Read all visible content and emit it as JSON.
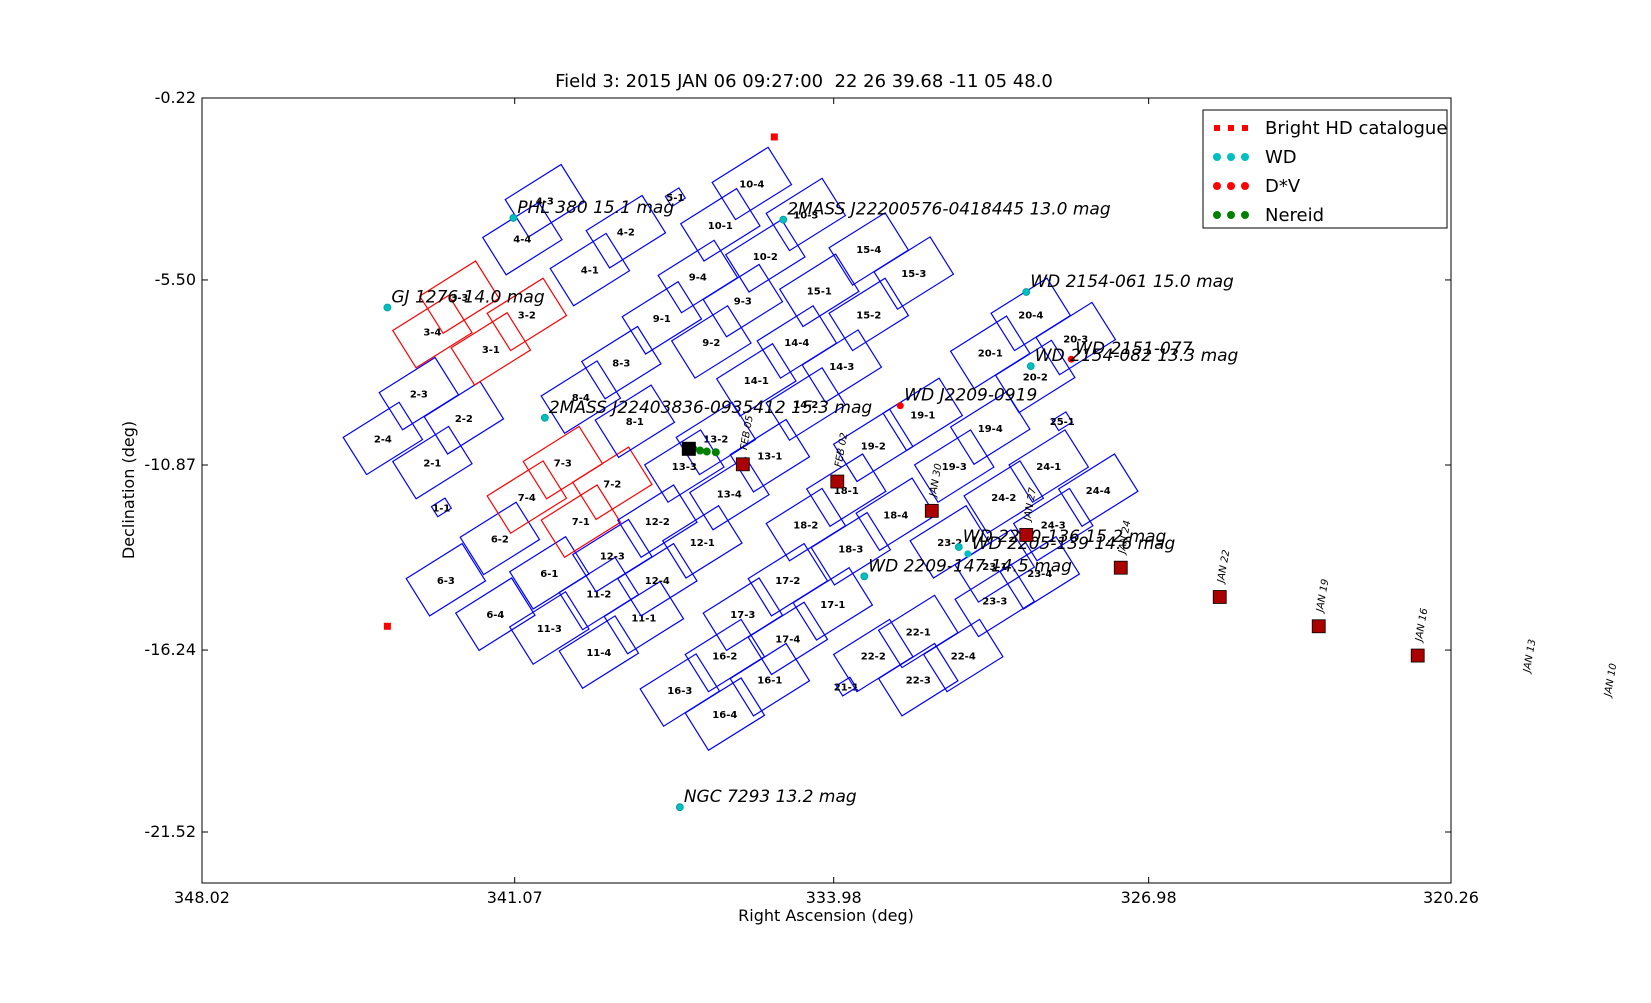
{
  "chart_data": {
    "type": "scatter",
    "title": "Field 3: 2015 JAN 06 09:27:00  22 26 39.68 -11 05 48.0",
    "xlabel": "Right Ascension (deg)",
    "ylabel": "Declination (deg)",
    "xlim": [
      348.02,
      320.26
    ],
    "ylim": [
      -23.0,
      -0.22
    ],
    "xticks": [
      "348.02",
      "341.07",
      "333.98",
      "326.98",
      "320.26"
    ],
    "xtick_values": [
      348.02,
      341.07,
      333.98,
      326.98,
      320.26
    ],
    "yticks": [
      "-0.22",
      "-5.50",
      "-10.87",
      "-16.24",
      "-21.52"
    ],
    "ytick_values": [
      -0.22,
      -5.5,
      -10.87,
      -16.24,
      -21.52
    ],
    "grid": false,
    "legend_position": "top-right",
    "legend": [
      {
        "label": "Bright HD catalogue",
        "color": "#ff0000",
        "marker": "square"
      },
      {
        "label": "WD",
        "color": "#00bfbf",
        "marker": "circle"
      },
      {
        "label": "D*V",
        "color": "#ff0000",
        "marker": "circle"
      },
      {
        "label": "Nereid",
        "color": "#008000",
        "marker": "circle"
      }
    ],
    "colors": {
      "ccd": "#0000ff",
      "ccd_highlight": "#ff0000",
      "track": "#aa0000",
      "wd": "#00bfbf",
      "hd": "#ff0000",
      "dv": "#ff0000",
      "nereid": "#008000"
    },
    "ccd_sample_points": {
      "ccd_1_1": [
        341.9,
        -12.0
      ],
      "ccd_2_1": [
        341.0,
        -10.85
      ],
      "ccd_2_4": [
        343.2,
        -10.3
      ],
      "ccd_3_4": [
        341.5,
        -7.0
      ],
      "ccd_4_4": [
        340.8,
        -5.4
      ],
      "ccd_10_4": [
        336.2,
        -4.1
      ]
    },
    "ccds": [
      {
        "label": "1-1",
        "ra": 342.7,
        "dec": -12.1,
        "hl": false
      },
      {
        "label": "2-1",
        "ra": 342.9,
        "dec": -10.8,
        "hl": false
      },
      {
        "label": "2-2",
        "ra": 342.2,
        "dec": -9.5,
        "hl": false
      },
      {
        "label": "2-3",
        "ra": 343.2,
        "dec": -8.8,
        "hl": false
      },
      {
        "label": "2-4",
        "ra": 344.0,
        "dec": -10.1,
        "hl": false
      },
      {
        "label": "3-1",
        "ra": 341.6,
        "dec": -7.5,
        "hl": true
      },
      {
        "label": "3-2",
        "ra": 340.8,
        "dec": -6.5,
        "hl": true
      },
      {
        "label": "3-3",
        "ra": 342.3,
        "dec": -6.0,
        "hl": true
      },
      {
        "label": "3-4",
        "ra": 342.9,
        "dec": -7.0,
        "hl": true
      },
      {
        "label": "4-1",
        "ra": 339.4,
        "dec": -5.2,
        "hl": false
      },
      {
        "label": "4-2",
        "ra": 338.6,
        "dec": -4.1,
        "hl": false
      },
      {
        "label": "4-3",
        "ra": 340.4,
        "dec": -3.2,
        "hl": false
      },
      {
        "label": "4-4",
        "ra": 340.9,
        "dec": -4.3,
        "hl": false
      },
      {
        "label": "5-1",
        "ra": 337.5,
        "dec": -3.1,
        "hl": false
      },
      {
        "label": "6-1",
        "ra": 340.3,
        "dec": -14.0,
        "hl": false
      },
      {
        "label": "6-2",
        "ra": 341.4,
        "dec": -13.0,
        "hl": false
      },
      {
        "label": "6-3",
        "ra": 342.6,
        "dec": -14.2,
        "hl": false
      },
      {
        "label": "6-4",
        "ra": 341.5,
        "dec": -15.2,
        "hl": false
      },
      {
        "label": "7-1",
        "ra": 339.6,
        "dec": -12.5,
        "hl": true
      },
      {
        "label": "7-2",
        "ra": 338.9,
        "dec": -11.4,
        "hl": true
      },
      {
        "label": "7-3",
        "ra": 340.0,
        "dec": -10.8,
        "hl": true
      },
      {
        "label": "7-4",
        "ra": 340.8,
        "dec": -11.8,
        "hl": true
      },
      {
        "label": "8-1",
        "ra": 338.4,
        "dec": -9.6,
        "hl": false
      },
      {
        "label": "8-3",
        "ra": 338.7,
        "dec": -7.9,
        "hl": false
      },
      {
        "label": "8-4",
        "ra": 339.6,
        "dec": -8.9,
        "hl": false
      },
      {
        "label": "9-1",
        "ra": 337.8,
        "dec": -6.6,
        "hl": false
      },
      {
        "label": "9-2",
        "ra": 336.7,
        "dec": -7.3,
        "hl": false
      },
      {
        "label": "9-3",
        "ra": 336.0,
        "dec": -6.1,
        "hl": false
      },
      {
        "label": "9-4",
        "ra": 337.0,
        "dec": -5.4,
        "hl": false
      },
      {
        "label": "10-1",
        "ra": 336.5,
        "dec": -3.9,
        "hl": false
      },
      {
        "label": "10-2",
        "ra": 335.5,
        "dec": -4.8,
        "hl": false
      },
      {
        "label": "10-3",
        "ra": 334.6,
        "dec": -3.6,
        "hl": false
      },
      {
        "label": "10-4",
        "ra": 335.8,
        "dec": -2.7,
        "hl": false
      },
      {
        "label": "11-1",
        "ra": 338.2,
        "dec": -15.3,
        "hl": false
      },
      {
        "label": "11-2",
        "ra": 339.2,
        "dec": -14.6,
        "hl": false
      },
      {
        "label": "11-3",
        "ra": 340.3,
        "dec": -15.6,
        "hl": false
      },
      {
        "label": "11-4",
        "ra": 339.2,
        "dec": -16.3,
        "hl": false
      },
      {
        "label": "12-1",
        "ra": 336.9,
        "dec": -13.1,
        "hl": false
      },
      {
        "label": "12-2",
        "ra": 337.9,
        "dec": -12.5,
        "hl": false
      },
      {
        "label": "12-3",
        "ra": 338.9,
        "dec": -13.5,
        "hl": false
      },
      {
        "label": "12-4",
        "ra": 337.9,
        "dec": -14.2,
        "hl": false
      },
      {
        "label": "13-1",
        "ra": 335.4,
        "dec": -10.6,
        "hl": false
      },
      {
        "label": "13-2",
        "ra": 336.6,
        "dec": -10.1,
        "hl": false
      },
      {
        "label": "13-3",
        "ra": 337.3,
        "dec": -10.9,
        "hl": false
      },
      {
        "label": "13-4",
        "ra": 336.3,
        "dec": -11.7,
        "hl": false
      },
      {
        "label": "14-1",
        "ra": 335.7,
        "dec": -8.4,
        "hl": false
      },
      {
        "label": "14-2",
        "ra": 334.6,
        "dec": -9.1,
        "hl": false
      },
      {
        "label": "14-3",
        "ra": 333.8,
        "dec": -8.0,
        "hl": false
      },
      {
        "label": "14-4",
        "ra": 334.8,
        "dec": -7.3,
        "hl": false
      },
      {
        "label": "15-1",
        "ra": 334.3,
        "dec": -5.8,
        "hl": false
      },
      {
        "label": "15-2",
        "ra": 333.2,
        "dec": -6.5,
        "hl": false
      },
      {
        "label": "15-3",
        "ra": 332.2,
        "dec": -5.3,
        "hl": false
      },
      {
        "label": "15-4",
        "ra": 333.2,
        "dec": -4.6,
        "hl": false
      },
      {
        "label": "16-1",
        "ra": 335.4,
        "dec": -17.1,
        "hl": false
      },
      {
        "label": "16-2",
        "ra": 336.4,
        "dec": -16.4,
        "hl": false
      },
      {
        "label": "16-3",
        "ra": 337.4,
        "dec": -17.4,
        "hl": false
      },
      {
        "label": "16-4",
        "ra": 336.4,
        "dec": -18.1,
        "hl": false
      },
      {
        "label": "17-1",
        "ra": 334.0,
        "dec": -14.9,
        "hl": false
      },
      {
        "label": "17-2",
        "ra": 335.0,
        "dec": -14.2,
        "hl": false
      },
      {
        "label": "17-3",
        "ra": 336.0,
        "dec": -15.2,
        "hl": false
      },
      {
        "label": "17-4",
        "ra": 335.0,
        "dec": -15.9,
        "hl": false
      },
      {
        "label": "18-1",
        "ra": 333.7,
        "dec": -11.6,
        "hl": false
      },
      {
        "label": "18-2",
        "ra": 334.6,
        "dec": -12.6,
        "hl": false
      },
      {
        "label": "18-3",
        "ra": 333.6,
        "dec": -13.3,
        "hl": false
      },
      {
        "label": "18-4",
        "ra": 332.6,
        "dec": -12.3,
        "hl": false
      },
      {
        "label": "19-1",
        "ra": 332.0,
        "dec": -9.4,
        "hl": false
      },
      {
        "label": "19-2",
        "ra": 333.1,
        "dec": -10.3,
        "hl": false
      },
      {
        "label": "19-3",
        "ra": 331.3,
        "dec": -10.9,
        "hl": false
      },
      {
        "label": "19-4",
        "ra": 330.5,
        "dec": -9.8,
        "hl": false
      },
      {
        "label": "20-1",
        "ra": 330.5,
        "dec": -7.6,
        "hl": false
      },
      {
        "label": "20-2",
        "ra": 329.5,
        "dec": -8.3,
        "hl": false
      },
      {
        "label": "20-3",
        "ra": 328.6,
        "dec": -7.2,
        "hl": false
      },
      {
        "label": "20-4",
        "ra": 329.6,
        "dec": -6.5,
        "hl": false
      },
      {
        "label": "21-1",
        "ra": 333.7,
        "dec": -17.3,
        "hl": false
      },
      {
        "label": "22-1",
        "ra": 332.1,
        "dec": -15.7,
        "hl": false
      },
      {
        "label": "22-2",
        "ra": 333.1,
        "dec": -16.4,
        "hl": false
      },
      {
        "label": "22-3",
        "ra": 332.1,
        "dec": -17.1,
        "hl": false
      },
      {
        "label": "22-4",
        "ra": 331.1,
        "dec": -16.4,
        "hl": false
      },
      {
        "label": "23-1",
        "ra": 330.4,
        "dec": -13.8,
        "hl": false
      },
      {
        "label": "23-2",
        "ra": 331.4,
        "dec": -13.1,
        "hl": false
      },
      {
        "label": "23-3",
        "ra": 330.4,
        "dec": -14.8,
        "hl": false
      },
      {
        "label": "23-4",
        "ra": 329.4,
        "dec": -14.0,
        "hl": false
      },
      {
        "label": "24-1",
        "ra": 329.2,
        "dec": -10.9,
        "hl": false
      },
      {
        "label": "24-2",
        "ra": 330.2,
        "dec": -11.8,
        "hl": false
      },
      {
        "label": "24-3",
        "ra": 329.1,
        "dec": -12.6,
        "hl": false
      },
      {
        "label": "24-4",
        "ra": 328.1,
        "dec": -11.6,
        "hl": false
      },
      {
        "label": "25-1",
        "ra": 328.9,
        "dec": -9.6,
        "hl": false
      }
    ],
    "named_objects": [
      {
        "label": "PHL 380 15.1 mag",
        "ra": 341.1,
        "dec": -3.7,
        "type": "WD"
      },
      {
        "label": "2MASS J22200576-0418445 13.0 mag",
        "ra": 335.1,
        "dec": -3.75,
        "type": "WD"
      },
      {
        "label": "WD 2154-061 15.0 mag",
        "ra": 329.7,
        "dec": -5.85,
        "type": "WD"
      },
      {
        "label": "GJ 1276 14.0 mag",
        "ra": 343.9,
        "dec": -6.3,
        "type": "WD"
      },
      {
        "label": "WD 2151-077",
        "ra": 328.7,
        "dec": -7.8,
        "type": "D*V"
      },
      {
        "label": "WD 2154-082 13.3 mag",
        "ra": 329.6,
        "dec": -8.0,
        "type": "WD"
      },
      {
        "label": "WD J2209-0919",
        "ra": 332.5,
        "dec": -9.15,
        "type": "D*V"
      },
      {
        "label": "2MASS J22403836-0935412 15.3 mag",
        "ra": 340.4,
        "dec": -9.5,
        "type": "WD"
      },
      {
        "label": "WD 2200-136 15.2 mag",
        "ra": 331.2,
        "dec": -13.25,
        "type": "WD"
      },
      {
        "label": "WD 2209-147 14.5 mag",
        "ra": 333.3,
        "dec": -14.1,
        "type": "WD"
      },
      {
        "label": "NGC 7293 13.2 mag",
        "ra": 337.4,
        "dec": -20.8,
        "type": "WD"
      }
    ],
    "overlapped_labels": [
      {
        "label": "WD 2205-139 14.6 mag",
        "ra": 331.0,
        "dec": -13.45
      }
    ],
    "hd_stars": [
      {
        "ra": 335.3,
        "dec": -1.35
      },
      {
        "ra": 343.9,
        "dec": -15.55
      }
    ],
    "nereid_track": [
      {
        "ra": 337.1,
        "dec": -10.4
      },
      {
        "ra": 336.95,
        "dec": -10.45
      },
      {
        "ra": 336.8,
        "dec": -10.48
      },
      {
        "ra": 336.6,
        "dec": -10.5
      }
    ],
    "nereid_current": {
      "ra": 337.2,
      "dec": -10.4
    },
    "track_markers": [
      {
        "ra": 336.0,
        "dec": -10.85,
        "date": "FEB 05"
      },
      {
        "ra": 333.9,
        "dec": -11.35,
        "date": "FEB 02"
      },
      {
        "ra": 331.8,
        "dec": -12.2,
        "date": "JAN 30"
      },
      {
        "ra": 329.7,
        "dec": -12.9,
        "date": "JAN 27"
      },
      {
        "ra": 327.6,
        "dec": -13.85,
        "date": "JAN 24"
      },
      {
        "ra": 325.4,
        "dec": -14.7,
        "date": "JAN 22"
      },
      {
        "ra": 323.2,
        "dec": -15.55,
        "date": "JAN 19"
      },
      {
        "ra": 321.0,
        "dec": -16.4,
        "date": "JAN 16"
      }
    ],
    "offplot_dates": [
      {
        "ra": 318.6,
        "dec": -17.3,
        "date": "JAN 13"
      },
      {
        "ra": 316.8,
        "dec": -18.0,
        "date": "JAN 10"
      }
    ]
  }
}
